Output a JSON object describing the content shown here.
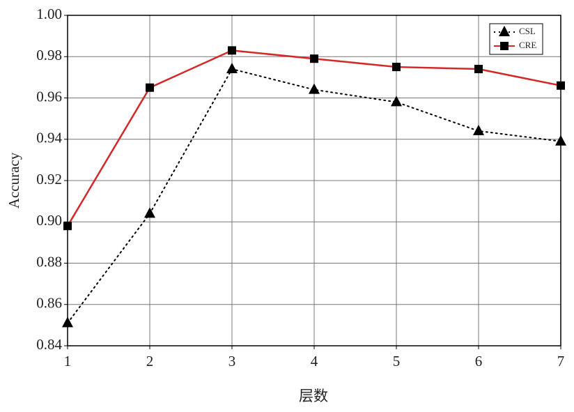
{
  "chart_data": {
    "type": "line",
    "xlabel": "层数",
    "ylabel": "Accuracy",
    "x": [
      1,
      2,
      3,
      4,
      5,
      6,
      7
    ],
    "series": [
      {
        "name": "CSL",
        "color": "#000000",
        "marker": "triangle",
        "linestyle": "dotted",
        "values": [
          0.851,
          0.904,
          0.974,
          0.964,
          0.958,
          0.944,
          0.939
        ]
      },
      {
        "name": "CRE",
        "color": "#d62728",
        "marker": "square",
        "linestyle": "solid",
        "values": [
          0.898,
          0.965,
          0.983,
          0.979,
          0.975,
          0.974,
          0.966
        ]
      }
    ],
    "xlim": [
      1,
      7
    ],
    "xticks": [
      1,
      2,
      3,
      4,
      5,
      6,
      7
    ],
    "ylim": [
      0.84,
      1
    ],
    "yticks": [
      0.84,
      0.86,
      0.88,
      {
        "value": 0.9,
        "label": "0.90"
      },
      0.92,
      0.94,
      0.96,
      0.98,
      {
        "value": 1,
        "label": "1.00"
      }
    ],
    "grid": true,
    "legend": "upper right"
  }
}
